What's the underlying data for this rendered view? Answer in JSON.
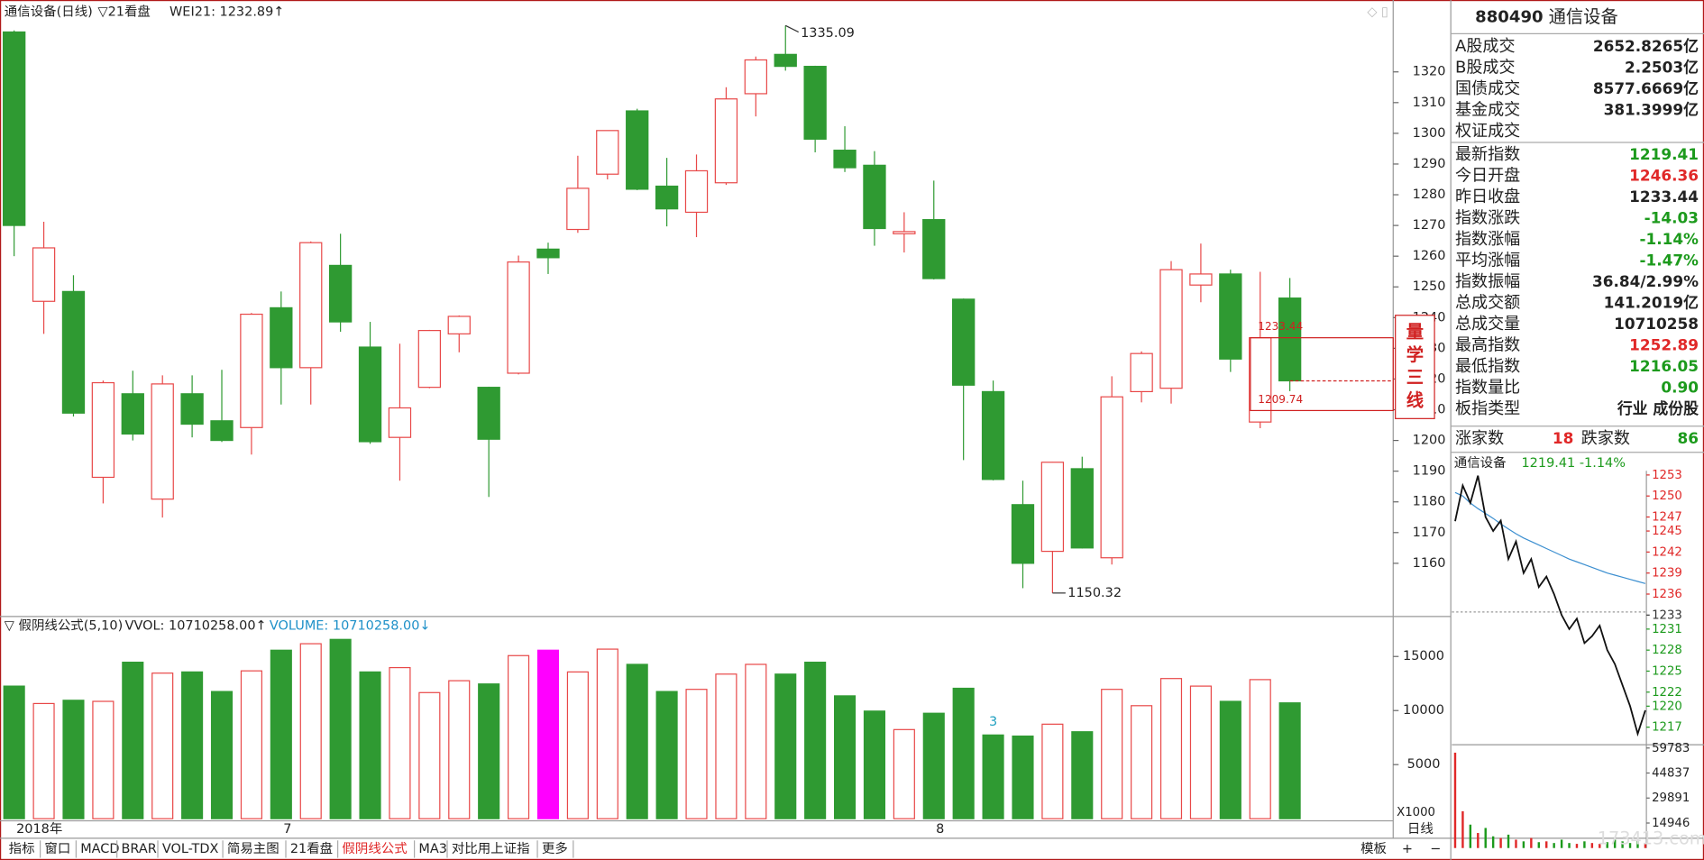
{
  "chart_data": [
    {
      "type": "candlestick",
      "title": "通信设备(日线)",
      "subtitle": "▽21看盘",
      "indicator": "WEI21: 1232.89↑",
      "categories": [
        "2018年",
        null,
        null,
        null,
        null,
        null,
        null,
        null,
        null,
        "7",
        null,
        null,
        null,
        null,
        null,
        null,
        null,
        null,
        null,
        null,
        null,
        null,
        null,
        null,
        null,
        null,
        null,
        null,
        null,
        null,
        null,
        "8",
        null,
        null,
        null,
        null,
        null,
        null,
        null,
        null,
        null,
        null,
        null,
        null
      ],
      "open": [
        1333,
        1245.3,
        1248.5,
        1188.0,
        1215.2,
        1180.9,
        1215.2,
        1206.4,
        1204.2,
        1243.2,
        1223.7,
        1257.0,
        1230.4,
        1201.0,
        1217.3,
        1234.7,
        1217.3,
        1221.9,
        1262.3,
        1268.7,
        1286.7,
        1307.3,
        1282.8,
        1274.3,
        1283.9,
        1312.9,
        1325.7,
        1321.8,
        1294.5,
        1289.6,
        1267.3,
        1271.9,
        1246.0,
        1215.9,
        1179.1,
        1163.9,
        1190.8,
        1161.8,
        1215.9,
        1217.0,
        1250.6,
        1254.2,
        1206.0,
        1246.36
      ],
      "high": [
        1333.5,
        1271.2,
        1253.8,
        1219.5,
        1222.7,
        1221.2,
        1221.2,
        1223.0,
        1241.5,
        1248.5,
        1264.8,
        1267.3,
        1238.6,
        1231.5,
        1236.0,
        1240.7,
        1217.5,
        1260.2,
        1264.4,
        1292.7,
        1301.0,
        1308.0,
        1292.0,
        1293.1,
        1315.0,
        1325.0,
        1335.09,
        1322.0,
        1302.3,
        1294.2,
        1274.3,
        1284.6,
        1246.2,
        1219.5,
        1186.9,
        1193.0,
        1194.7,
        1220.9,
        1229.0,
        1258.4,
        1264.1,
        1255.6,
        1254.9,
        1252.89
      ],
      "low": [
        1260,
        1234.7,
        1207.8,
        1179.5,
        1200.0,
        1174.9,
        1201.0,
        1199.5,
        1195.4,
        1211.7,
        1211.7,
        1235.4,
        1198.9,
        1186.9,
        1217.0,
        1228.7,
        1181.6,
        1221.5,
        1254.2,
        1267.6,
        1285.0,
        1281.5,
        1269.7,
        1266.2,
        1283.2,
        1305.5,
        1320.4,
        1293.8,
        1287.4,
        1263.4,
        1261.2,
        1252.4,
        1193.6,
        1187.0,
        1151.9,
        1150.32,
        1164.8,
        1159.6,
        1212.4,
        1212.0,
        1245.0,
        1222.3,
        1204.0,
        1216.05
      ],
      "close": [
        1270,
        1262.7,
        1208.9,
        1218.8,
        1202.1,
        1218.4,
        1205.3,
        1200.0,
        1241.1,
        1223.7,
        1264.4,
        1238.6,
        1199.6,
        1210.6,
        1235.8,
        1240.4,
        1200.4,
        1258.1,
        1259.5,
        1282.1,
        1300.9,
        1281.8,
        1275.4,
        1287.8,
        1311.2,
        1323.9,
        1321.8,
        1298.1,
        1288.8,
        1269.0,
        1268.0,
        1252.7,
        1218.0,
        1187.3,
        1160.0,
        1192.9,
        1165.0,
        1214.2,
        1228.3,
        1255.6,
        1254.2,
        1226.5,
        1233.44,
        1219.41
      ],
      "up_color": "#e84848",
      "down_color": "#2f9a32",
      "ylim": [
        1143.4,
        1342.7
      ],
      "yticks": [
        1160,
        1170,
        1180,
        1190,
        1200,
        1210,
        1220,
        1230,
        1240,
        1250,
        1260,
        1270,
        1280,
        1290,
        1300,
        1310,
        1320
      ],
      "three_line": {
        "title": "量学三线",
        "levels": [
          1233.44,
          1209.74
        ],
        "color": "#d02020"
      },
      "x_axis_label": "日线"
    },
    {
      "type": "bar",
      "title": "▽ 假阴线公式(5,10)",
      "legend": [
        {
          "text": "VVOL: 10710258.00↑",
          "color": "#222222"
        },
        {
          "text": "VOLUME: 10710258.00↓",
          "color": "#1e90c8"
        }
      ],
      "values": [
        12260,
        10650,
        10950,
        10850,
        14470,
        13460,
        13570,
        11760,
        13670,
        15580,
        16180,
        16580,
        13570,
        13970,
        11660,
        12760,
        12460,
        15080,
        15580,
        13570,
        15680,
        14270,
        11760,
        11960,
        13370,
        14270,
        13370,
        14470,
        11360,
        9950,
        8240,
        9750,
        12060,
        7740,
        7640,
        8740,
        8040,
        11960,
        10450,
        12960,
        12260,
        10850,
        12860,
        10710.258
      ],
      "ylim": [
        0,
        18600
      ],
      "yticks": [
        5000,
        10000,
        15000
      ],
      "y_unit": "X1000",
      "highlight": [
        18
      ],
      "highlight_color": "#ff00ff",
      "annotations": [
        {
          "text": "3",
          "at": 33,
          "color": "#20a0c0"
        }
      ]
    },
    {
      "type": "line",
      "title": "通信设备",
      "subtitle": "1219.41 -1.14%",
      "values": [
        1246.4,
        1251.5,
        1249,
        1252.9,
        1247,
        1245,
        1246.5,
        1241,
        1243.5,
        1239,
        1241,
        1237,
        1238.5,
        1236,
        1233,
        1231,
        1232.5,
        1229,
        1230,
        1231.5,
        1228,
        1226,
        1223,
        1220,
        1216.05,
        1219.41
      ],
      "average": [
        1250.5,
        1250,
        1249,
        1248.2,
        1247.5,
        1246.8,
        1246,
        1245.3,
        1244.6,
        1244,
        1243.5,
        1243,
        1242.5,
        1242,
        1241.5,
        1241,
        1240.6,
        1240.2,
        1239.8,
        1239.4,
        1239,
        1238.7,
        1238.4,
        1238.1,
        1237.8,
        1237.5
      ],
      "color": "#111111",
      "average_color": "#3c8fd0",
      "ylim": [
        1214.8,
        1253.6
      ],
      "yticks": [
        1217,
        1220,
        1222,
        1225,
        1228,
        1231,
        1233,
        1236,
        1239,
        1242,
        1245,
        1247,
        1250,
        1253
      ]
    },
    {
      "type": "bar",
      "values": [
        57000,
        22000,
        14000,
        9000,
        12000,
        7000,
        6000,
        8000,
        5000,
        4000,
        6000,
        3500,
        4000,
        3000,
        5000,
        3000,
        2500,
        4000,
        3000,
        2500,
        3500,
        5000,
        4000,
        3000,
        4500,
        3000
      ],
      "ylim": [
        0,
        59783
      ],
      "yticks": [
        14946,
        29891,
        44837,
        59783
      ]
    }
  ],
  "quote_panel": {
    "code": "880490",
    "name": "通信设备",
    "rows": [
      {
        "label": "A股成交",
        "value": "2652.8265亿",
        "color": "#222222"
      },
      {
        "label": "B股成交",
        "value": "2.2503亿",
        "color": "#222222"
      },
      {
        "label": "国债成交",
        "value": "8577.6669亿",
        "color": "#222222"
      },
      {
        "label": "基金成交",
        "value": "381.3999亿",
        "color": "#222222"
      },
      {
        "label": "权证成交"
      },
      {
        "label": "最新指数",
        "value": "1219.41",
        "color": "#1c9a1c"
      },
      {
        "label": "今日开盘",
        "value": "1246.36",
        "color": "#e02828"
      },
      {
        "label": "昨日收盘",
        "value": "1233.44",
        "color": "#222222"
      },
      {
        "label": "指数涨跌",
        "value": "-14.03",
        "color": "#1c9a1c"
      },
      {
        "label": "指数涨幅",
        "value": "-1.14%",
        "color": "#1c9a1c"
      },
      {
        "label": "平均涨幅",
        "value": "-1.47%",
        "color": "#1c9a1c"
      },
      {
        "label": "指数振幅",
        "value": "36.84/2.99%",
        "color": "#222222"
      },
      {
        "label": "总成交额",
        "value": "141.2019亿",
        "color": "#222222"
      },
      {
        "label": "总成交量",
        "value": "10710258",
        "color": "#222222"
      },
      {
        "label": "最高指数",
        "value": "1252.89",
        "color": "#e02828"
      },
      {
        "label": "最低指数",
        "value": "1216.05",
        "color": "#1c9a1c"
      },
      {
        "label": "指数量比",
        "value": "0.90",
        "color": "#1c9a1c"
      },
      {
        "label": "板指类型",
        "value": "行业 成份股",
        "color": "#222222"
      }
    ],
    "breadth": {
      "up_label": "涨家数",
      "up": "18",
      "down_label": "跌家数",
      "down": "86"
    }
  },
  "toolbar": {
    "tabs": [
      "指标",
      "窗口",
      "MACD",
      "BRAR",
      "VOL-TDX",
      "简易主图",
      "21看盘",
      "假阴线公式",
      "MA3",
      "对比用上证指",
      "更多"
    ],
    "active": 7,
    "right": [
      "模板",
      "+",
      "−"
    ]
  },
  "watermark": "173413.com"
}
